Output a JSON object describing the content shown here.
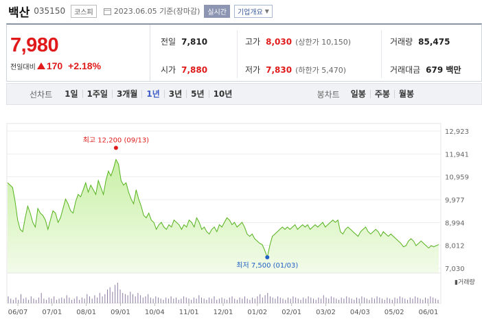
{
  "header": {
    "stock_name": "백산",
    "stock_code": "035150",
    "market": "코스피",
    "date": "2023.06.05 기준(장마감)",
    "realtime": "실시간",
    "company_info": "기업개요"
  },
  "quote": {
    "price": "7,980",
    "change_label": "전일대비",
    "change": "170",
    "change_pct": "+2.18%",
    "prev_close_label": "전일",
    "prev_close": "7,810",
    "open_label": "시가",
    "open": "7,880",
    "high_label": "고가",
    "high": "8,030",
    "upper_limit": "(상한가 10,150)",
    "low_label": "저가",
    "low": "7,830",
    "lower_limit": "(하한가 5,470)",
    "volume_label": "거래량",
    "volume": "85,475",
    "amount_label": "거래대금",
    "amount": "679 백만"
  },
  "toolbar": {
    "line_label": "선차트",
    "periods": [
      "1일",
      "1주일",
      "3개월",
      "1년",
      "3년",
      "5년",
      "10년"
    ],
    "active_period": "1년",
    "candle_label": "봉차트",
    "candles": [
      "일봉",
      "주봉",
      "월봉"
    ]
  },
  "chart_data": {
    "type": "area",
    "y_ticks": [
      "12,923",
      "11,941",
      "10,959",
      "9,977",
      "8,994",
      "8,012",
      "7,030"
    ],
    "ylim": [
      7030,
      12923
    ],
    "x_ticks": [
      "06/07",
      "07/01",
      "08/01",
      "09/01",
      "10/04",
      "11/01",
      "12/01",
      "01/02",
      "02/01",
      "03/02",
      "04/03",
      "05/02",
      "06/01"
    ],
    "high_annotation": "최고 12,200 (09/13)",
    "low_annotation": "최저 7,500 (01/03)",
    "volume_label": "거래량",
    "line_color": "#54b21b",
    "fill_color": "#e7f8d9",
    "series": [
      {
        "values": [
          10700,
          10600,
          10500,
          9900,
          9100,
          8700,
          8600,
          9200,
          9700,
          9400,
          9000,
          8800,
          9600,
          9400,
          9300,
          9100,
          8700,
          9100,
          9500,
          9400,
          9000,
          9200,
          9600,
          10000,
          9800,
          9500,
          9400,
          9900,
          10200,
          10100,
          10400,
          10700,
          10300,
          10600,
          10400,
          10200,
          10800,
          10500,
          10200,
          10800,
          11200,
          11000,
          11300,
          11700,
          11500,
          10800,
          10600,
          10700,
          10300,
          10000,
          9800,
          10400,
          10000,
          9700,
          9300,
          9200,
          9400,
          9100,
          9000,
          8700,
          8900,
          9000,
          8800,
          8700,
          8900,
          8800,
          9100,
          9000,
          8900,
          8700,
          8900,
          8800,
          9100,
          9000,
          8800,
          9200,
          9000,
          8700,
          8800,
          8600,
          8500,
          8700,
          8800,
          8600,
          8900,
          8800,
          9000,
          9200,
          9100,
          8900,
          9000,
          8800,
          8900,
          9000,
          8800,
          8500,
          8400,
          8500,
          8300,
          8200,
          8100,
          8050,
          7800,
          7500,
          8000,
          8400,
          8500,
          8600,
          8700,
          8800,
          8700,
          8800,
          8700,
          8800,
          8900,
          8700,
          8800,
          8900,
          8800,
          8900,
          8700,
          8800,
          8900,
          8800,
          8900,
          9000,
          8800,
          8900,
          9000,
          9100,
          9000,
          9100,
          8600,
          8500,
          8700,
          8800,
          8700,
          8600,
          8500,
          8400,
          8600,
          8700,
          8800,
          8600,
          8500,
          8600,
          8700,
          8600,
          8400,
          8600,
          8500,
          8400,
          8500,
          8400,
          8300,
          8200,
          8100,
          7950,
          8000,
          8200,
          8300,
          8200,
          8000,
          8100,
          8200,
          8100,
          8000,
          7900,
          8000,
          7950,
          8000,
          8050
        ]
      }
    ],
    "volume": [
      6,
      4,
      3,
      5,
      3,
      8,
      4,
      5,
      3,
      6,
      4,
      3,
      5,
      9,
      4,
      3,
      5,
      4,
      6,
      3,
      4,
      5,
      4,
      7,
      5,
      3,
      4,
      6,
      3,
      5,
      4,
      8,
      6,
      4,
      7,
      5,
      9,
      6,
      8,
      12,
      14,
      10,
      16,
      18,
      12,
      9,
      8,
      7,
      10,
      8,
      6,
      9,
      7,
      5,
      6,
      8,
      5,
      4,
      6,
      5,
      4,
      3,
      5,
      4,
      6,
      4,
      5,
      3,
      4,
      6,
      5,
      4,
      3,
      5,
      4,
      7,
      5,
      4,
      3,
      5,
      4,
      6,
      3,
      4,
      5,
      4,
      3,
      5,
      6,
      4,
      3,
      5,
      4,
      6,
      4,
      3,
      5,
      4,
      6,
      8,
      5,
      7,
      9,
      6,
      5,
      4,
      6,
      5,
      4,
      3,
      5,
      4,
      6,
      5,
      4,
      3,
      5,
      4,
      6,
      5,
      4,
      3,
      5,
      4,
      7,
      5,
      4,
      6,
      5,
      4,
      3,
      5,
      4,
      6,
      5,
      4,
      3,
      5,
      4,
      6,
      5,
      4,
      3,
      5,
      4,
      6,
      5,
      4,
      3,
      5,
      4,
      3,
      5,
      4,
      6,
      5,
      4,
      3,
      5,
      4,
      6,
      5,
      4,
      3,
      5,
      4,
      6,
      5,
      4,
      3
    ]
  }
}
